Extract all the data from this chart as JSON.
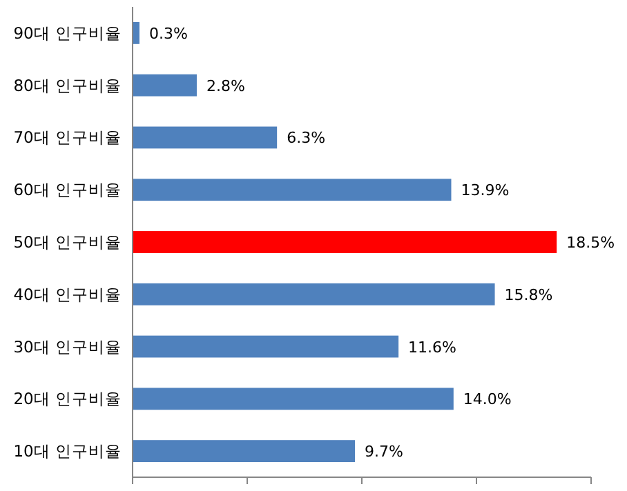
{
  "chart_data": {
    "type": "bar",
    "orientation": "horizontal",
    "categories": [
      "90대 인구비율",
      "80대 인구비율",
      "70대 인구비율",
      "60대 인구비율",
      "50대 인구비율",
      "40대 인구비율",
      "30대 인구비율",
      "20대 인구비율",
      "10대 인구비율"
    ],
    "values": [
      0.3,
      2.8,
      6.3,
      13.9,
      18.5,
      15.8,
      11.6,
      14.0,
      9.7
    ],
    "colors": [
      "#4f81bd",
      "#4f81bd",
      "#4f81bd",
      "#4f81bd",
      "#ff0000",
      "#4f81bd",
      "#4f81bd",
      "#4f81bd",
      "#4f81bd"
    ],
    "value_labels": [
      "0.3%",
      "2.8%",
      "6.3%",
      "13.9%",
      "18.5%",
      "15.8%",
      "11.6%",
      "14.0%",
      "9.7%"
    ],
    "xlim": [
      0,
      20
    ],
    "xticks": [
      {
        "value": 0,
        "label": null
      },
      {
        "value": 5,
        "label": null
      },
      {
        "value": 10,
        "label": null
      },
      {
        "value": 15,
        "label": null
      },
      {
        "value": 20,
        "label": null
      }
    ],
    "grid": false
  }
}
